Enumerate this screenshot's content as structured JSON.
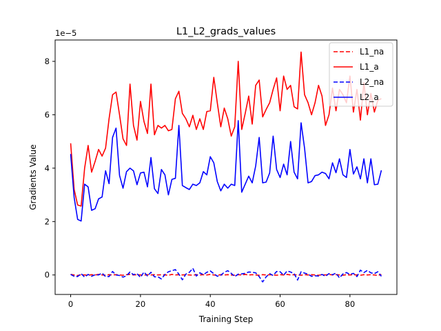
{
  "chart_data": {
    "type": "line",
    "title": "L1_L2_grads_values",
    "xlabel": "Training Step",
    "ylabel": "Gradients Value",
    "y_scale_label": "1e−5",
    "xlim": [
      -4.45,
      93.45
    ],
    "ylim": [
      -0.73,
      8.8
    ],
    "x_ticks": [
      0,
      20,
      40,
      60,
      80
    ],
    "x_tick_labels": [
      "0",
      "20",
      "40",
      "60",
      "80"
    ],
    "y_ticks": [
      0,
      2,
      4,
      6,
      8
    ],
    "y_tick_labels": [
      "0",
      "2",
      "4",
      "6",
      "8"
    ],
    "grid": false,
    "legend_position": "top-right",
    "x": [
      0,
      1,
      2,
      3,
      4,
      5,
      6,
      7,
      8,
      9,
      10,
      11,
      12,
      13,
      14,
      15,
      16,
      17,
      18,
      19,
      20,
      21,
      22,
      23,
      24,
      25,
      26,
      27,
      28,
      29,
      30,
      31,
      32,
      33,
      34,
      35,
      36,
      37,
      38,
      39,
      40,
      41,
      42,
      43,
      44,
      45,
      46,
      47,
      48,
      49,
      50,
      51,
      52,
      53,
      54,
      55,
      56,
      57,
      58,
      59,
      60,
      61,
      62,
      63,
      64,
      65,
      66,
      67,
      68,
      69,
      70,
      71,
      72,
      73,
      74,
      75,
      76,
      77,
      78,
      79,
      80,
      81,
      82,
      83,
      84,
      85,
      86,
      87,
      88,
      89
    ],
    "series": [
      {
        "name": "L1_na",
        "color": "#ff0000",
        "dash": "dashed",
        "values": [
          0.02,
          0,
          -0.02,
          0.01,
          0,
          -0.01,
          0.01,
          0,
          0.02,
          0,
          -0.01,
          0.01,
          0,
          0.01,
          0,
          -0.01,
          0.01,
          0.02,
          0,
          0.01,
          0,
          -0.01,
          0.01,
          0,
          0.01,
          0,
          0.01,
          0,
          -0.01,
          0.02,
          0,
          0.01,
          0,
          0.01,
          0,
          -0.01,
          0.01,
          0,
          0.01,
          0,
          0.02,
          0,
          -0.01,
          0.01,
          0,
          0.01,
          0,
          -0.01,
          0.01,
          0,
          0.02,
          0,
          0.01,
          0,
          -0.01,
          0.01,
          0,
          0.01,
          0,
          -0.01,
          0.01,
          0,
          0.02,
          0,
          0.01,
          0,
          -0.01,
          0.01,
          0,
          0.01,
          0,
          -0.01,
          0.01,
          0,
          0.02,
          0,
          0.01,
          0,
          -0.01,
          0.01,
          0,
          0.01,
          0,
          -0.01,
          0.01,
          0,
          0.01,
          0,
          -0.02,
          0.02
        ]
      },
      {
        "name": "L1_a",
        "color": "#ff0000",
        "dash": "solid",
        "values": [
          4.93,
          3.2,
          2.62,
          2.58,
          4.0,
          4.85,
          3.85,
          4.25,
          4.7,
          4.45,
          4.75,
          5.85,
          6.75,
          6.85,
          6.0,
          5.1,
          4.85,
          7.15,
          5.6,
          5.05,
          6.5,
          5.75,
          5.3,
          7.15,
          5.25,
          5.6,
          5.5,
          5.6,
          5.4,
          5.45,
          6.6,
          6.88,
          6.05,
          5.85,
          5.55,
          5.98,
          5.45,
          5.85,
          5.45,
          6.12,
          6.15,
          7.4,
          6.45,
          5.55,
          6.25,
          5.85,
          5.2,
          5.55,
          8.0,
          5.45,
          6.05,
          6.7,
          5.65,
          7.1,
          7.3,
          5.92,
          6.2,
          6.45,
          6.95,
          7.38,
          6.15,
          7.45,
          6.95,
          7.1,
          6.3,
          6.22,
          8.35,
          6.75,
          6.45,
          6.0,
          6.45,
          7.1,
          6.7,
          5.6,
          6.0,
          7.0,
          6.15,
          6.95,
          6.75,
          6.45,
          7.45,
          6.1,
          6.95,
          5.8,
          7.2,
          6.0,
          6.8,
          6.1,
          6.55,
          6.6
        ]
      },
      {
        "name": "L2_na",
        "color": "#0000ff",
        "dash": "dashed",
        "values": [
          0.02,
          -0.05,
          -0.06,
          0.05,
          -0.08,
          0.02,
          -0.05,
          0.01,
          0,
          0.07,
          -0.06,
          -0.06,
          0.13,
          0,
          -0.02,
          -0.08,
          -0.03,
          0.11,
          0.01,
          0.05,
          -0.09,
          0.11,
          -0.04,
          0.1,
          -0.07,
          -0.07,
          -0.15,
          0.02,
          0.12,
          0.16,
          0.2,
          0.03,
          -0.18,
          0.03,
          0.1,
          0.25,
          -0.04,
          0.08,
          0.01,
          0.1,
          0.15,
          0.05,
          -0.05,
          -0.01,
          0.1,
          0.16,
          0.06,
          -0.06,
          0.03,
          0.04,
          0.06,
          0.11,
          0.1,
          0.08,
          -0.06,
          -0.26,
          -0.07,
          0.05,
          -0.02,
          0.13,
          0.12,
          -0.01,
          0.15,
          0.11,
          0.05,
          -0.19,
          0.12,
          0.07,
          0.03,
          -0.05,
          -0.03,
          -0.04,
          0.02,
          -0.05,
          0.05,
          0.01,
          0.07,
          -0.11,
          0.04,
          0.09,
          0.02,
          0.06,
          -0.06,
          0.18,
          0.09,
          0.17,
          0.08,
          0.05,
          0.12,
          -0.05
        ]
      },
      {
        "name": "L2_a",
        "color": "#0000ff",
        "dash": "solid",
        "values": [
          4.53,
          2.9,
          2.08,
          2.02,
          3.4,
          3.3,
          2.42,
          2.48,
          2.85,
          2.92,
          3.9,
          3.42,
          5.15,
          5.5,
          3.73,
          3.25,
          3.87,
          4.0,
          3.9,
          3.38,
          3.82,
          3.85,
          3.3,
          4.4,
          3.23,
          3.05,
          3.95,
          3.75,
          3.0,
          3.58,
          3.62,
          5.6,
          3.35,
          3.27,
          3.2,
          3.4,
          3.35,
          3.45,
          3.87,
          3.75,
          4.43,
          4.2,
          3.5,
          3.15,
          3.4,
          3.25,
          3.4,
          3.35,
          5.78,
          3.1,
          3.4,
          3.7,
          3.45,
          4.08,
          5.15,
          3.45,
          3.48,
          3.82,
          5.2,
          3.95,
          3.65,
          4.15,
          3.75,
          5.0,
          3.85,
          3.6,
          5.7,
          4.75,
          3.45,
          3.5,
          3.72,
          3.75,
          3.85,
          3.8,
          3.6,
          4.2,
          3.83,
          4.35,
          3.75,
          3.65,
          4.7,
          3.78,
          4.05,
          3.6,
          4.35,
          3.45,
          4.35,
          3.38,
          3.4,
          3.92
        ]
      }
    ]
  }
}
